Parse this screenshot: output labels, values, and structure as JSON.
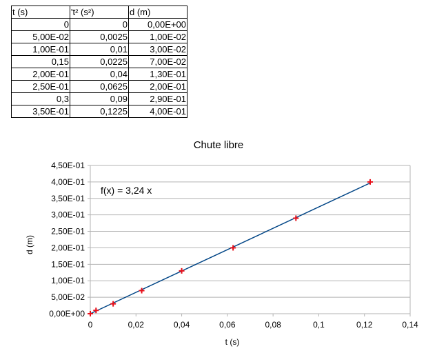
{
  "table": {
    "headers": [
      "t (s)",
      "'t² (s²)",
      "d (m)"
    ],
    "rows": [
      [
        "0",
        "0",
        "0,00E+00"
      ],
      [
        "5,00E-02",
        "0,0025",
        "1,00E-02"
      ],
      [
        "1,00E-01",
        "0,01",
        "3,00E-02"
      ],
      [
        "0,15",
        "0,0225",
        "7,00E-02"
      ],
      [
        "2,00E-01",
        "0,04",
        "1,30E-01"
      ],
      [
        "2,50E-01",
        "0,0625",
        "2,00E-01"
      ],
      [
        "0,3",
        "0,09",
        "2,90E-01"
      ],
      [
        "3,50E-01",
        "0,1225",
        "4,00E-01"
      ]
    ]
  },
  "chart_data": {
    "type": "scatter",
    "title": "Chute libre",
    "xlabel": "t (s)",
    "ylabel": "d (m)",
    "xlim": [
      0,
      0.14
    ],
    "ylim": [
      0,
      0.45
    ],
    "x_ticks": [
      0,
      0.02,
      0.04,
      0.06,
      0.08,
      0.1,
      0.12,
      0.14
    ],
    "x_tick_labels": [
      "0",
      "0,02",
      "0,04",
      "0,06",
      "0,08",
      "0,1",
      "0,12",
      "0,14"
    ],
    "y_ticks": [
      0,
      0.05,
      0.1,
      0.15,
      0.2,
      0.25,
      0.3,
      0.35,
      0.4,
      0.45
    ],
    "y_tick_labels": [
      "0,00E+00",
      "5,00E-02",
      "1,00E-01",
      "1,50E-01",
      "2,00E-01",
      "2,50E-01",
      "3,00E-01",
      "3,50E-01",
      "4,00E-01",
      "4,50E-01"
    ],
    "grid": "horizontal",
    "points": [
      {
        "x": 0,
        "y": 0
      },
      {
        "x": 0.0025,
        "y": 0.01
      },
      {
        "x": 0.01,
        "y": 0.03
      },
      {
        "x": 0.0225,
        "y": 0.07
      },
      {
        "x": 0.04,
        "y": 0.13
      },
      {
        "x": 0.0625,
        "y": 0.2
      },
      {
        "x": 0.09,
        "y": 0.29
      },
      {
        "x": 0.1225,
        "y": 0.4
      }
    ],
    "trendline": {
      "slope": 3.24,
      "label": "f(x) = 3,24 x"
    },
    "marker_color": "#e8101a",
    "line_color": "#004586",
    "grid_color": "#b3b3b3"
  }
}
